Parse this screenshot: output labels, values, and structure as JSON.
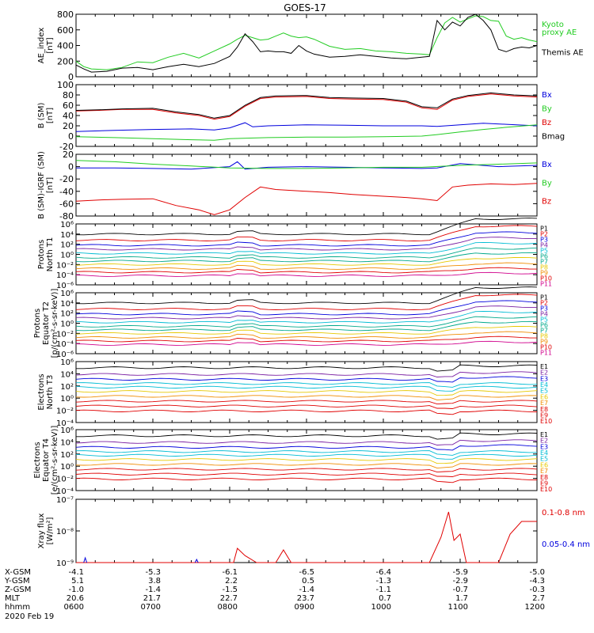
{
  "title": "GOES-17",
  "colors": {
    "black": "#000000",
    "red": "#e00000",
    "green": "#22cc22",
    "blue": "#0000dd",
    "purple": "#7a1fa2",
    "cyan": "#00bcd4",
    "teal": "#00a88a",
    "yellow": "#e6c800",
    "orange": "#f08c00",
    "magenta": "#d0008c"
  },
  "chart_data": [
    {
      "type": "line",
      "panel": "ae",
      "ylabel": "AE_index\n[nT]",
      "ylim": [
        0,
        800
      ],
      "yticks": [
        "0",
        "200",
        "400",
        "600",
        "800"
      ],
      "legend": [
        "Kyoto\nproxy AE",
        "Themis AE"
      ],
      "series": [
        {
          "name": "Kyoto proxy AE",
          "color": "green",
          "x": [
            6.0,
            6.1,
            6.2,
            6.4,
            6.6,
            6.8,
            7.0,
            7.2,
            7.4,
            7.6,
            7.8,
            8.0,
            8.1,
            8.2,
            8.3,
            8.4,
            8.5,
            8.6,
            8.7,
            8.8,
            8.9,
            9.0,
            9.1,
            9.3,
            9.5,
            9.7,
            9.9,
            10.1,
            10.3,
            10.5,
            10.6,
            10.7,
            10.8,
            10.9,
            11.0,
            11.1,
            11.2,
            11.3,
            11.4,
            11.5,
            11.6,
            11.7,
            11.8,
            11.9,
            12.0
          ],
          "values": [
            200,
            130,
            100,
            90,
            120,
            190,
            180,
            250,
            300,
            240,
            330,
            420,
            480,
            530,
            500,
            470,
            480,
            520,
            560,
            520,
            500,
            510,
            480,
            390,
            350,
            360,
            330,
            320,
            300,
            290,
            280,
            500,
            690,
            760,
            700,
            740,
            780,
            770,
            720,
            710,
            520,
            480,
            500,
            470,
            450
          ]
        },
        {
          "name": "Themis AE",
          "color": "black",
          "x": [
            6.0,
            6.1,
            6.2,
            6.4,
            6.6,
            6.8,
            7.0,
            7.2,
            7.4,
            7.6,
            7.8,
            8.0,
            8.1,
            8.2,
            8.3,
            8.4,
            8.5,
            8.6,
            8.7,
            8.8,
            8.9,
            9.0,
            9.1,
            9.3,
            9.5,
            9.7,
            9.9,
            10.1,
            10.3,
            10.5,
            10.6,
            10.7,
            10.8,
            10.9,
            11.0,
            11.1,
            11.2,
            11.3,
            11.4,
            11.5,
            11.6,
            11.7,
            11.8,
            11.9,
            12.0
          ],
          "values": [
            150,
            100,
            60,
            70,
            110,
            120,
            90,
            130,
            160,
            130,
            170,
            260,
            380,
            550,
            450,
            320,
            330,
            320,
            320,
            300,
            400,
            330,
            290,
            250,
            260,
            280,
            260,
            240,
            230,
            250,
            260,
            720,
            600,
            700,
            650,
            760,
            800,
            720,
            600,
            350,
            320,
            360,
            380,
            370,
            400
          ]
        }
      ]
    },
    {
      "type": "line",
      "panel": "b",
      "ylabel": "B (SM)\n[nT]",
      "ylim": [
        -20,
        100
      ],
      "yticks": [
        "-20",
        "0",
        "20",
        "40",
        "60",
        "80",
        "100"
      ],
      "legend": [
        "Bx",
        "By",
        "Bz",
        "Bmag"
      ],
      "series": [
        {
          "name": "Bx",
          "color": "blue",
          "x": [
            6.0,
            6.5,
            7.0,
            7.5,
            7.8,
            8.0,
            8.2,
            8.3,
            8.5,
            9.0,
            9.5,
            10.0,
            10.5,
            10.7,
            11.0,
            11.3,
            11.6,
            12.0
          ],
          "values": [
            9,
            11,
            13,
            14,
            12,
            16,
            26,
            18,
            20,
            22,
            21,
            20,
            20,
            19,
            22,
            25,
            23,
            20
          ]
        },
        {
          "name": "By",
          "color": "green",
          "x": [
            6.0,
            6.5,
            7.0,
            7.5,
            7.8,
            8.0,
            8.5,
            9.0,
            9.5,
            10.0,
            10.5,
            10.7,
            11.0,
            11.3,
            11.6,
            12.0
          ],
          "values": [
            -1,
            -3,
            -5,
            -7,
            -8,
            -5,
            -3,
            -2,
            -2,
            -1,
            0,
            3,
            8,
            13,
            17,
            22
          ]
        },
        {
          "name": "Bz",
          "color": "red",
          "x": [
            6.0,
            6.3,
            6.6,
            7.0,
            7.3,
            7.6,
            7.8,
            8.0,
            8.2,
            8.4,
            8.6,
            9.0,
            9.3,
            9.6,
            10.0,
            10.3,
            10.5,
            10.7,
            10.9,
            11.1,
            11.4,
            11.7,
            12.0
          ],
          "values": [
            49,
            50,
            52,
            52,
            45,
            40,
            33,
            38,
            58,
            73,
            76,
            77,
            73,
            72,
            71,
            66,
            55,
            52,
            70,
            77,
            82,
            78,
            76
          ]
        },
        {
          "name": "Bmag",
          "color": "black",
          "x": [
            6.0,
            6.3,
            6.6,
            7.0,
            7.3,
            7.6,
            7.8,
            8.0,
            8.2,
            8.4,
            8.6,
            9.0,
            9.3,
            9.6,
            10.0,
            10.3,
            10.5,
            10.7,
            10.9,
            11.1,
            11.4,
            11.7,
            12.0
          ],
          "values": [
            50,
            51,
            53,
            54,
            47,
            42,
            35,
            40,
            60,
            75,
            78,
            79,
            75,
            74,
            73,
            68,
            57,
            55,
            72,
            79,
            84,
            80,
            78
          ]
        }
      ]
    },
    {
      "type": "line",
      "panel": "bd",
      "ylabel": "B (SM)-IGRF (SM)\n[nT]",
      "ylim": [
        -80,
        20
      ],
      "yticks": [
        "-80",
        "-60",
        "-40",
        "-20",
        "0",
        "20"
      ],
      "legend": [
        "Bx",
        "By",
        "Bz"
      ],
      "series": [
        {
          "name": "Bx",
          "color": "blue",
          "x": [
            6.0,
            6.5,
            7.0,
            7.5,
            8.0,
            8.1,
            8.2,
            8.5,
            9.0,
            9.5,
            10.0,
            10.5,
            10.7,
            11.0,
            11.5,
            12.0
          ],
          "values": [
            -2,
            -2,
            -3,
            -4,
            0,
            8,
            -4,
            -1,
            0,
            -1,
            -2,
            -3,
            -2,
            5,
            0,
            2
          ]
        },
        {
          "name": "By",
          "color": "green",
          "x": [
            6.0,
            6.5,
            7.0,
            7.5,
            8.0,
            8.5,
            9.0,
            9.5,
            10.0,
            10.5,
            11.0,
            11.5,
            12.0
          ],
          "values": [
            10,
            8,
            4,
            1,
            -2,
            -3,
            -3,
            -2,
            -1,
            -1,
            2,
            4,
            6
          ]
        },
        {
          "name": "Bz",
          "color": "red",
          "x": [
            6.0,
            6.3,
            6.6,
            7.0,
            7.3,
            7.6,
            7.8,
            8.0,
            8.2,
            8.4,
            8.6,
            9.0,
            9.3,
            9.6,
            10.0,
            10.3,
            10.5,
            10.7,
            10.9,
            11.1,
            11.4,
            11.7,
            12.0
          ],
          "values": [
            -56,
            -54,
            -53,
            -52,
            -63,
            -70,
            -78,
            -70,
            -50,
            -33,
            -37,
            -40,
            -42,
            -45,
            -48,
            -50,
            -52,
            -55,
            -33,
            -30,
            -28,
            -29,
            -27
          ]
        }
      ]
    },
    {
      "type": "line",
      "panel": "pn",
      "log": true,
      "ylabel": "Protons\nNorth T1",
      "ylim": [
        1e-06,
        1000000.0
      ],
      "legend": [
        "P1",
        "P2",
        "P3",
        "P4",
        "P5",
        "P6",
        "P7",
        "P8",
        "P9",
        "P10",
        "P11"
      ]
    },
    {
      "type": "line",
      "panel": "pe",
      "log": true,
      "ylabel": "Protons\nEquator T2\n[p/(cm²-s-sr-keV)]",
      "ylim": [
        1e-06,
        1000000.0
      ],
      "legend": [
        "P1",
        "P2",
        "P3",
        "P4",
        "P5",
        "P6",
        "P7",
        "P8",
        "P9",
        "P10",
        "P11"
      ]
    },
    {
      "type": "line",
      "panel": "en",
      "log": true,
      "ylabel": "Electrons\nNorth T3",
      "ylim": [
        0.0001,
        1000000.0
      ],
      "legend": [
        "E1",
        "E2",
        "E3",
        "E4",
        "E5",
        "E6",
        "E7",
        "E8",
        "E9",
        "E10"
      ]
    },
    {
      "type": "line",
      "panel": "ee",
      "log": true,
      "ylabel": "Electrons\nEquator T4\n[e/(cm²-s-sr-keV)]",
      "ylim": [
        0.0001,
        1000000.0
      ],
      "legend": [
        "E1",
        "E2",
        "E3",
        "E4",
        "E5",
        "E6",
        "E7",
        "E8",
        "E9",
        "E10"
      ]
    },
    {
      "type": "line",
      "panel": "xr",
      "log": true,
      "ylabel": "Xray flux\n[W/m²]",
      "ylim": [
        1e-09,
        1e-07
      ],
      "legend": [
        "0.1-0.8 nm",
        "0.05-0.4 nm"
      ]
    }
  ],
  "xaxis": {
    "rows": [
      {
        "label": "X-GSM",
        "values": [
          "-4.1",
          "-5.3",
          "-6.1",
          "-6.5",
          "-6.4",
          "-5.9",
          "-5.0"
        ]
      },
      {
        "label": "Y-GSM",
        "values": [
          "5.1",
          "3.8",
          "2.2",
          "0.5",
          "-1.3",
          "-2.9",
          "-4.3"
        ]
      },
      {
        "label": "Z-GSM",
        "values": [
          "-1.0",
          "-1.4",
          "-1.5",
          "-1.4",
          "-1.1",
          "-0.7",
          "-0.3"
        ]
      },
      {
        "label": "MLT",
        "values": [
          "20.6",
          "21.7",
          "22.7",
          "23.7",
          "0.7",
          "1.7",
          "2.7"
        ]
      },
      {
        "label": "hhmm",
        "values": [
          "0600",
          "0700",
          "0800",
          "0900",
          "1000",
          "1100",
          "1200"
        ]
      }
    ],
    "date": "2020 Feb 19"
  },
  "log_labels": {
    "pn": [
      "10⁶",
      "10⁴",
      "10²",
      "10⁰",
      "10⁻²",
      "10⁻⁴",
      "10⁻⁶"
    ],
    "pe": [
      "10⁶",
      "10⁴",
      "10²",
      "10⁰",
      "10⁻²",
      "10⁻⁴",
      "10⁻⁶"
    ],
    "en": [
      "10⁶",
      "10⁴",
      "10²",
      "10⁰",
      "10⁻²",
      "10⁻⁴"
    ],
    "ee": [
      "10⁶",
      "10⁴",
      "10²",
      "10⁰",
      "10⁻²",
      "10⁻⁴"
    ],
    "xr": [
      "10⁻⁷",
      "10⁻⁸",
      "10⁻⁹"
    ]
  }
}
